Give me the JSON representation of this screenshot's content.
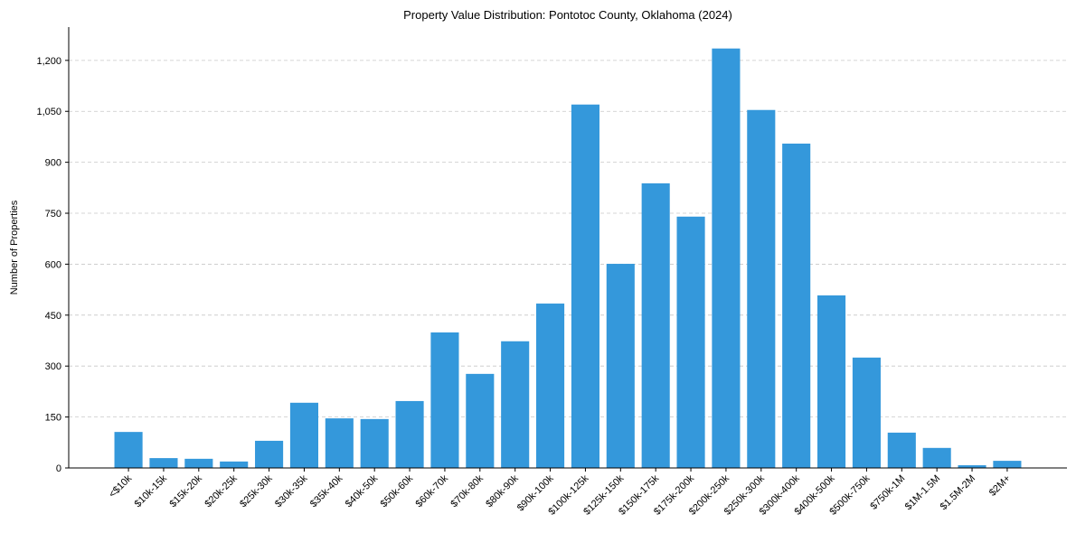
{
  "chart_data": {
    "type": "bar",
    "title": "Property Value Distribution: Pontotoc County, Oklahoma (2024)",
    "xlabel": "",
    "ylabel": "Number of Properties",
    "ylim": [
      0,
      1298
    ],
    "yticks": [
      0,
      150,
      300,
      450,
      600,
      750,
      900,
      1050,
      1200
    ],
    "ytick_labels": [
      "0",
      "150",
      "300",
      "450",
      "600",
      "750",
      "900",
      "1,050",
      "1,200"
    ],
    "grid": "y-dashed",
    "bar_color": "#3498db",
    "categories": [
      "<$10k",
      "$10k-15k",
      "$15k-20k",
      "$20k-25k",
      "$25k-30k",
      "$30k-35k",
      "$35k-40k",
      "$40k-50k",
      "$50k-60k",
      "$60k-70k",
      "$70k-80k",
      "$80k-90k",
      "$90k-100k",
      "$100k-125k",
      "$125k-150k",
      "$150k-175k",
      "$175k-200k",
      "$200k-250k",
      "$250k-300k",
      "$300k-400k",
      "$400k-500k",
      "$500k-750k",
      "$750k-1M",
      "$1M-1.5M",
      "$1.5M-2M",
      "$2M+"
    ],
    "values": [
      106,
      29,
      27,
      19,
      80,
      192,
      146,
      144,
      197,
      399,
      277,
      373,
      484,
      1070,
      601,
      838,
      740,
      1235,
      1054,
      955,
      508,
      325,
      104,
      59,
      8,
      21
    ]
  }
}
